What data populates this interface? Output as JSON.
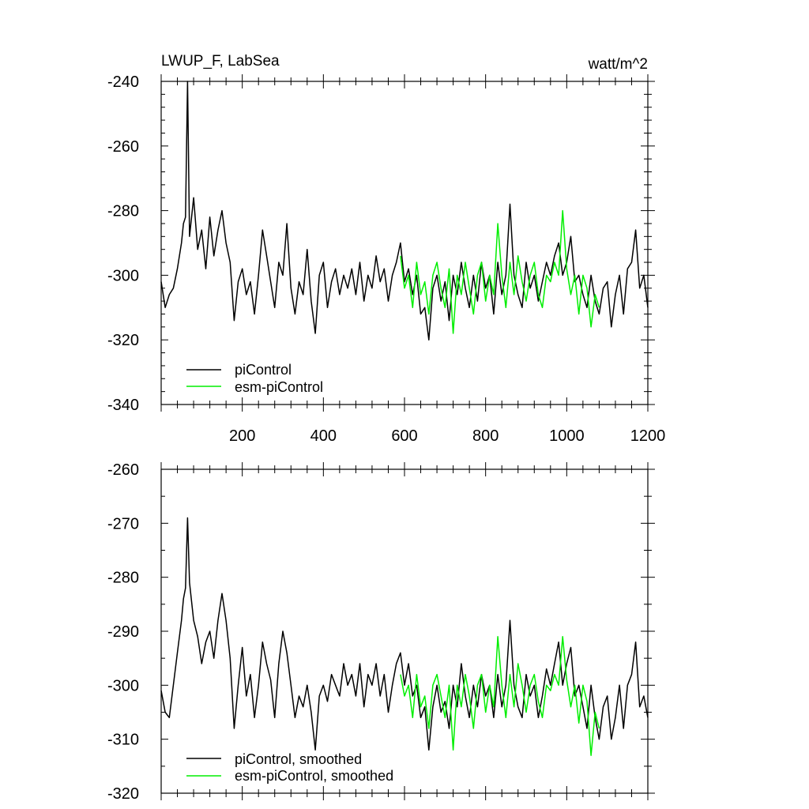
{
  "chart_data": [
    {
      "type": "line",
      "title": "LWUP_F, LabSea",
      "units": "watt/m^2",
      "xlabel": "",
      "ylabel": "",
      "xlim": [
        0,
        1200
      ],
      "ylim": [
        -340,
        -240
      ],
      "xticks": [
        200,
        400,
        600,
        800,
        1000,
        1200
      ],
      "xtick_labels": [
        "200",
        "400",
        "600",
        "800",
        "1000",
        "1200"
      ],
      "yticks": [
        -340,
        -320,
        -300,
        -280,
        -260,
        -240
      ],
      "ytick_labels": [
        "-340",
        "-320",
        "-300",
        "-280",
        "-260",
        "-240"
      ],
      "grid": false,
      "legend": "bottom-left",
      "series": [
        {
          "name": "piControl",
          "color": "#000000",
          "x": [
            0,
            10,
            20,
            30,
            40,
            50,
            55,
            60,
            65,
            70,
            80,
            90,
            100,
            110,
            120,
            130,
            140,
            150,
            160,
            170,
            180,
            190,
            200,
            210,
            220,
            230,
            240,
            250,
            260,
            270,
            280,
            290,
            300,
            310,
            320,
            330,
            340,
            350,
            360,
            370,
            380,
            390,
            400,
            410,
            420,
            430,
            440,
            450,
            460,
            470,
            480,
            490,
            500,
            510,
            520,
            530,
            540,
            550,
            560,
            570,
            580,
            590,
            600,
            610,
            620,
            630,
            640,
            650,
            660,
            670,
            680,
            690,
            700,
            710,
            720,
            730,
            740,
            750,
            760,
            770,
            780,
            790,
            800,
            810,
            820,
            830,
            840,
            850,
            860,
            870,
            880,
            890,
            900,
            910,
            920,
            930,
            940,
            950,
            960,
            970,
            980,
            990,
            1000,
            1010,
            1020,
            1030,
            1040,
            1050,
            1060,
            1070,
            1080,
            1090,
            1100,
            1110,
            1120,
            1130,
            1140,
            1150,
            1160,
            1170,
            1180,
            1190,
            1200
          ],
          "values": [
            -302,
            -310,
            -306,
            -304,
            -298,
            -290,
            -284,
            -282,
            -240,
            -288,
            -276,
            -292,
            -286,
            -298,
            -282,
            -294,
            -286,
            -280,
            -290,
            -296,
            -314,
            -302,
            -298,
            -306,
            -302,
            -312,
            -300,
            -286,
            -294,
            -302,
            -310,
            -296,
            -300,
            -284,
            -304,
            -312,
            -302,
            -306,
            -292,
            -308,
            -318,
            -300,
            -296,
            -310,
            -302,
            -298,
            -306,
            -300,
            -304,
            -298,
            -306,
            -296,
            -308,
            -300,
            -304,
            -294,
            -302,
            -298,
            -308,
            -300,
            -296,
            -290,
            -302,
            -298,
            -306,
            -300,
            -312,
            -310,
            -320,
            -304,
            -300,
            -308,
            -302,
            -314,
            -300,
            -306,
            -296,
            -304,
            -310,
            -300,
            -308,
            -296,
            -304,
            -300,
            -312,
            -296,
            -306,
            -300,
            -278,
            -300,
            -306,
            -310,
            -296,
            -304,
            -300,
            -308,
            -302,
            -296,
            -300,
            -294,
            -290,
            -300,
            -296,
            -288,
            -302,
            -300,
            -306,
            -310,
            -300,
            -308,
            -312,
            -304,
            -302,
            -316,
            -306,
            -300,
            -312,
            -298,
            -296,
            -286,
            -304,
            -300,
            -310
          ]
        },
        {
          "name": "esm-piControl",
          "color": "#00ee00",
          "x": [
            590,
            600,
            610,
            620,
            630,
            640,
            650,
            660,
            670,
            680,
            690,
            700,
            710,
            720,
            730,
            740,
            750,
            760,
            770,
            780,
            790,
            800,
            810,
            820,
            830,
            840,
            850,
            860,
            870,
            880,
            890,
            900,
            910,
            920,
            930,
            940,
            950,
            960,
            970,
            980,
            990,
            1000,
            1010,
            1020,
            1030,
            1040,
            1050,
            1060,
            1070,
            1080
          ],
          "values": [
            -294,
            -304,
            -300,
            -310,
            -296,
            -306,
            -302,
            -312,
            -300,
            -296,
            -304,
            -310,
            -298,
            -318,
            -300,
            -306,
            -296,
            -304,
            -312,
            -300,
            -296,
            -308,
            -300,
            -306,
            -284,
            -300,
            -310,
            -296,
            -306,
            -294,
            -302,
            -308,
            -300,
            -296,
            -306,
            -310,
            -300,
            -302,
            -296,
            -300,
            -280,
            -298,
            -306,
            -300,
            -312,
            -300,
            -304,
            -316,
            -306,
            -310
          ]
        }
      ]
    },
    {
      "type": "line",
      "title": "",
      "xlabel": "",
      "ylabel": "",
      "xlim": [
        0,
        1200
      ],
      "ylim": [
        -320,
        -260
      ],
      "yticks": [
        -320,
        -310,
        -300,
        -290,
        -280,
        -270,
        -260
      ],
      "ytick_labels": [
        "-320",
        "-310",
        "-300",
        "-290",
        "-280",
        "-270",
        "-260"
      ],
      "grid": false,
      "legend": "bottom-left",
      "series": [
        {
          "name": "piControl, smoothed",
          "color": "#000000",
          "x": [
            0,
            10,
            20,
            30,
            40,
            50,
            55,
            60,
            65,
            70,
            80,
            90,
            100,
            110,
            120,
            130,
            140,
            150,
            160,
            170,
            180,
            190,
            200,
            210,
            220,
            230,
            240,
            250,
            260,
            270,
            280,
            290,
            300,
            310,
            320,
            330,
            340,
            350,
            360,
            370,
            380,
            390,
            400,
            410,
            420,
            430,
            440,
            450,
            460,
            470,
            480,
            490,
            500,
            510,
            520,
            530,
            540,
            550,
            560,
            570,
            580,
            590,
            600,
            610,
            620,
            630,
            640,
            650,
            660,
            670,
            680,
            690,
            700,
            710,
            720,
            730,
            740,
            750,
            760,
            770,
            780,
            790,
            800,
            810,
            820,
            830,
            840,
            850,
            860,
            870,
            880,
            890,
            900,
            910,
            920,
            930,
            940,
            950,
            960,
            970,
            980,
            990,
            1000,
            1010,
            1020,
            1030,
            1040,
            1050,
            1060,
            1070,
            1080,
            1090,
            1100,
            1110,
            1120,
            1130,
            1140,
            1150,
            1160,
            1170,
            1180,
            1190,
            1200
          ],
          "values": [
            -301,
            -305,
            -306,
            -300,
            -294,
            -288,
            -284,
            -282,
            -269,
            -281,
            -288,
            -291,
            -296,
            -292,
            -290,
            -295,
            -288,
            -283,
            -288,
            -295,
            -308,
            -300,
            -293,
            -302,
            -298,
            -306,
            -300,
            -292,
            -296,
            -299,
            -306,
            -296,
            -290,
            -294,
            -300,
            -306,
            -302,
            -304,
            -300,
            -305,
            -312,
            -302,
            -300,
            -303,
            -298,
            -300,
            -302,
            -296,
            -300,
            -298,
            -302,
            -296,
            -304,
            -298,
            -300,
            -296,
            -302,
            -298,
            -305,
            -300,
            -296,
            -294,
            -300,
            -296,
            -302,
            -300,
            -306,
            -304,
            -312,
            -304,
            -300,
            -305,
            -303,
            -308,
            -300,
            -304,
            -296,
            -302,
            -306,
            -300,
            -304,
            -298,
            -302,
            -300,
            -306,
            -298,
            -304,
            -300,
            -288,
            -300,
            -304,
            -306,
            -298,
            -302,
            -300,
            -306,
            -302,
            -297,
            -300,
            -296,
            -292,
            -300,
            -296,
            -293,
            -302,
            -300,
            -304,
            -308,
            -300,
            -306,
            -310,
            -304,
            -302,
            -310,
            -306,
            -300,
            -308,
            -300,
            -298,
            -292,
            -304,
            -302,
            -306
          ]
        },
        {
          "name": "esm-piControl, smoothed",
          "color": "#00ee00",
          "x": [
            590,
            600,
            610,
            620,
            630,
            640,
            650,
            660,
            670,
            680,
            690,
            700,
            710,
            720,
            730,
            740,
            750,
            760,
            770,
            780,
            790,
            800,
            810,
            820,
            830,
            840,
            850,
            860,
            870,
            880,
            890,
            900,
            910,
            920,
            930,
            940,
            950,
            960,
            970,
            980,
            990,
            1000,
            1010,
            1020,
            1030,
            1040,
            1050,
            1060,
            1070,
            1080
          ],
          "values": [
            -298,
            -302,
            -300,
            -306,
            -298,
            -304,
            -302,
            -308,
            -300,
            -298,
            -302,
            -306,
            -300,
            -312,
            -300,
            -304,
            -298,
            -302,
            -308,
            -300,
            -298,
            -305,
            -300,
            -304,
            -291,
            -300,
            -306,
            -298,
            -304,
            -296,
            -300,
            -305,
            -300,
            -298,
            -303,
            -306,
            -300,
            -301,
            -298,
            -300,
            -291,
            -299,
            -304,
            -300,
            -307,
            -300,
            -303,
            -313,
            -305,
            -308
          ]
        }
      ]
    }
  ]
}
